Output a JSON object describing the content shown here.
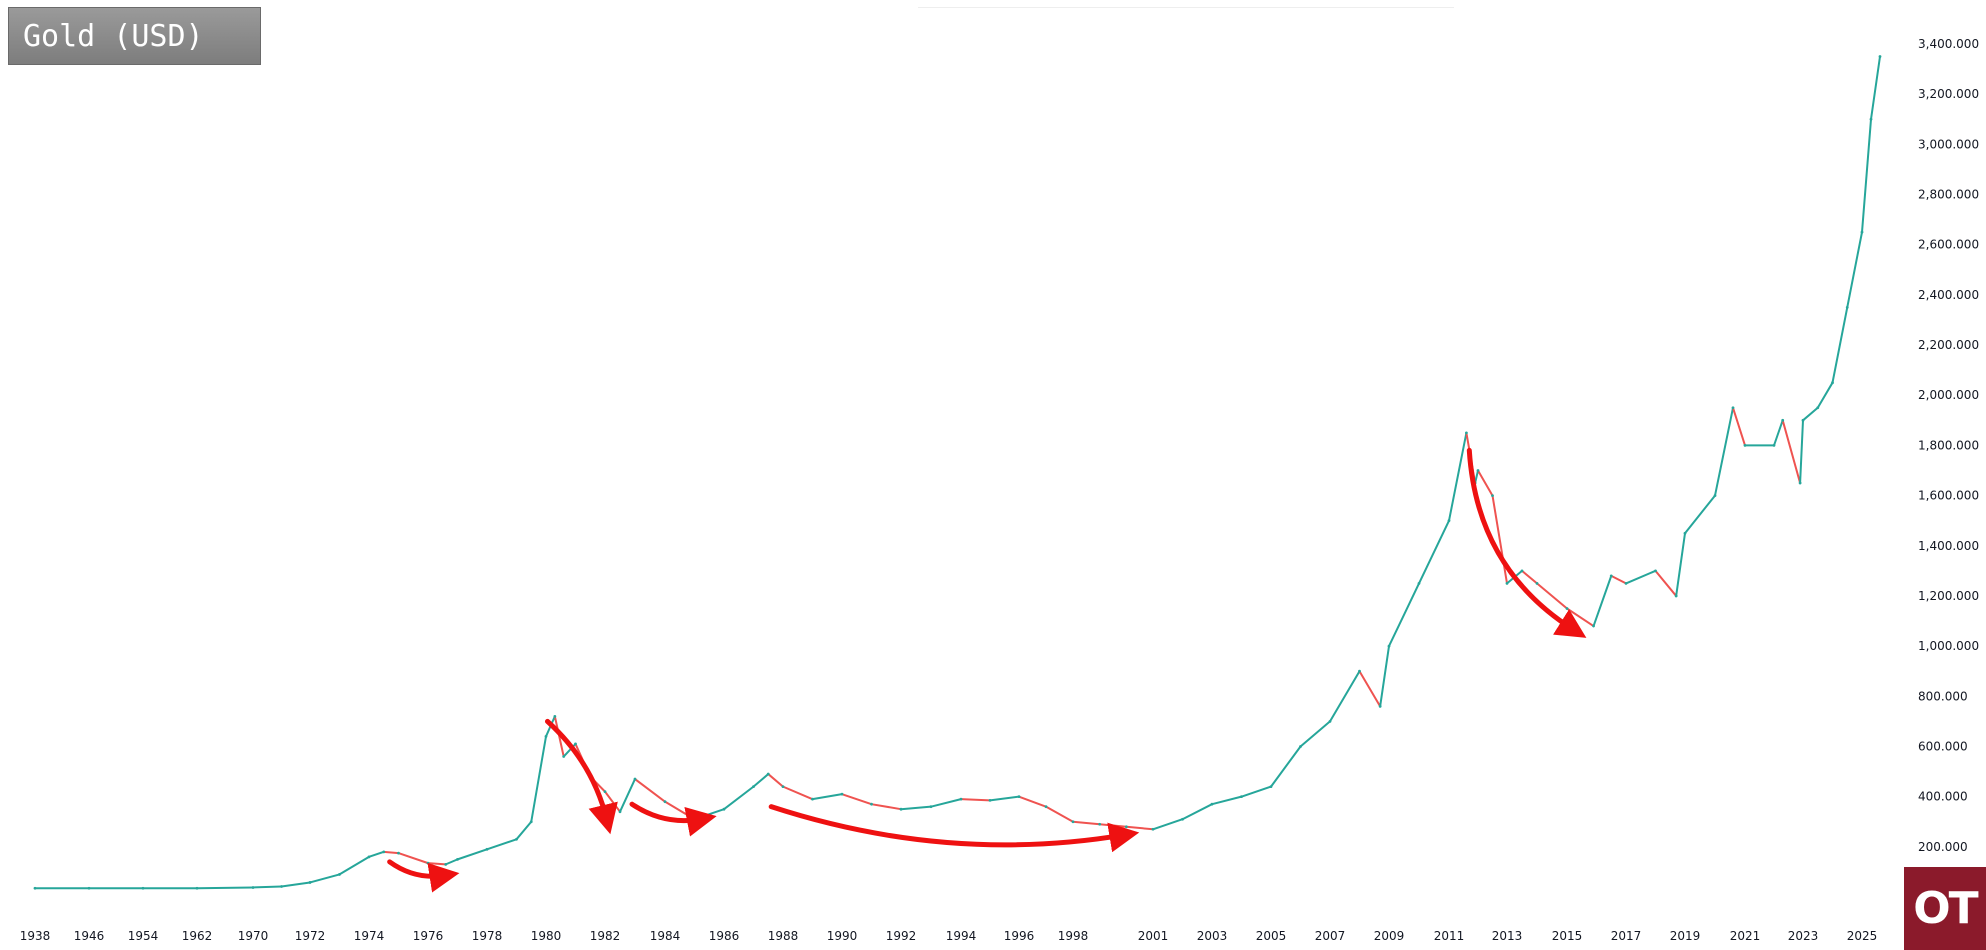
{
  "title": "Gold (USD)",
  "logo_text": "OT",
  "colors": {
    "up": "#26a69a",
    "down": "#ef5350",
    "arrow": "#ee1111",
    "logo_bg": "#8b1a2b",
    "title_bg": "#8a8a8a"
  },
  "chart_data": {
    "type": "line",
    "title": "Gold (USD)",
    "xlabel": "",
    "ylabel": "",
    "ylim": [
      0,
      3500
    ],
    "grid": false,
    "y_axis_side": "right",
    "x_ticks": [
      "1938",
      "1946",
      "1954",
      "1962",
      "1970",
      "1972",
      "1974",
      "1976",
      "1978",
      "1980",
      "1982",
      "1984",
      "1986",
      "1988",
      "1990",
      "1992",
      "1994",
      "1996",
      "1998",
      "2001",
      "2003",
      "2005",
      "2007",
      "2009",
      "2011",
      "2013",
      "2015",
      "2017",
      "2019",
      "2021",
      "2023",
      "2025"
    ],
    "y_ticks": [
      "200.000",
      "400.000",
      "600.000",
      "800.000",
      "1,000.000",
      "1,200.000",
      "1,400.000",
      "1,600.000",
      "1,800.000",
      "2,000.000",
      "2,200.000",
      "2,400.000",
      "2,600.000",
      "2,800.000",
      "3,000.000",
      "3,200.000",
      "3,400.000"
    ],
    "y_tick_values": [
      200,
      400,
      600,
      800,
      1000,
      1200,
      1400,
      1600,
      1800,
      2000,
      2200,
      2400,
      2600,
      2800,
      3000,
      3200,
      3400
    ],
    "series": [
      {
        "x": [
          "1938",
          "1946",
          "1954",
          "1962",
          "1970",
          "1971",
          "1972",
          "1973",
          "1974",
          "1974.5",
          "1975",
          "1976",
          "1976.6",
          "1977",
          "1978",
          "1979",
          "1979.5",
          "1980",
          "1980.3",
          "1980.6",
          "1981",
          "1981.5",
          "1982",
          "1982.5",
          "1983",
          "1984",
          "1985",
          "1986",
          "1987",
          "1987.5",
          "1988",
          "1989",
          "1990",
          "1991",
          "1992",
          "1993",
          "1994",
          "1995",
          "1996",
          "1997",
          "1998",
          "1999",
          "2000",
          "2001",
          "2002",
          "2003",
          "2004",
          "2005",
          "2006",
          "2007",
          "2008",
          "2008.7",
          "2009",
          "2010",
          "2011",
          "2011.6",
          "2011.9",
          "2012",
          "2012.5",
          "2013",
          "2013.5",
          "2014",
          "2015",
          "2015.9",
          "2016.5",
          "2017",
          "2018",
          "2018.7",
          "2019",
          "2020",
          "2020.6",
          "2021",
          "2022",
          "2022.3",
          "2022.9",
          "2023",
          "2023.5",
          "2024",
          "2024.5",
          "2025",
          "2025.3",
          "2025.6"
        ],
        "values": [
          35,
          35,
          35,
          35,
          38,
          42,
          58,
          90,
          160,
          180,
          175,
          135,
          130,
          150,
          190,
          230,
          300,
          640,
          720,
          560,
          610,
          480,
          420,
          340,
          470,
          380,
          310,
          350,
          440,
          490,
          440,
          390,
          410,
          370,
          350,
          360,
          390,
          385,
          400,
          360,
          300,
          290,
          280,
          270,
          310,
          370,
          400,
          440,
          600,
          700,
          900,
          760,
          1000,
          1250,
          1500,
          1850,
          1650,
          1700,
          1600,
          1250,
          1300,
          1250,
          1150,
          1080,
          1280,
          1250,
          1300,
          1200,
          1450,
          1600,
          1950,
          1800,
          1800,
          1900,
          1650,
          1900,
          1950,
          2050,
          2350,
          2650,
          3100,
          3350
        ]
      }
    ],
    "annotations": [
      {
        "type": "arrow",
        "from_x": "1974.7",
        "from_y": 140,
        "to_x": "1976.6",
        "to_y": 85,
        "bend": 0.2
      },
      {
        "type": "arrow",
        "from_x": "1980.05",
        "from_y": 700,
        "to_x": "1982.1",
        "to_y": 300,
        "bend": -0.15
      },
      {
        "type": "arrow",
        "from_x": "1982.9",
        "from_y": 370,
        "to_x": "1985.3",
        "to_y": 310,
        "bend": 0.2
      },
      {
        "type": "arrow",
        "from_x": "1987.6",
        "from_y": 360,
        "to_x": "2000.2",
        "to_y": 245,
        "bend": 0.12
      },
      {
        "type": "arrow",
        "from_x": "2011.7",
        "from_y": 1780,
        "to_x": "2015.3",
        "to_y": 1050,
        "bend": 0.25
      }
    ]
  }
}
